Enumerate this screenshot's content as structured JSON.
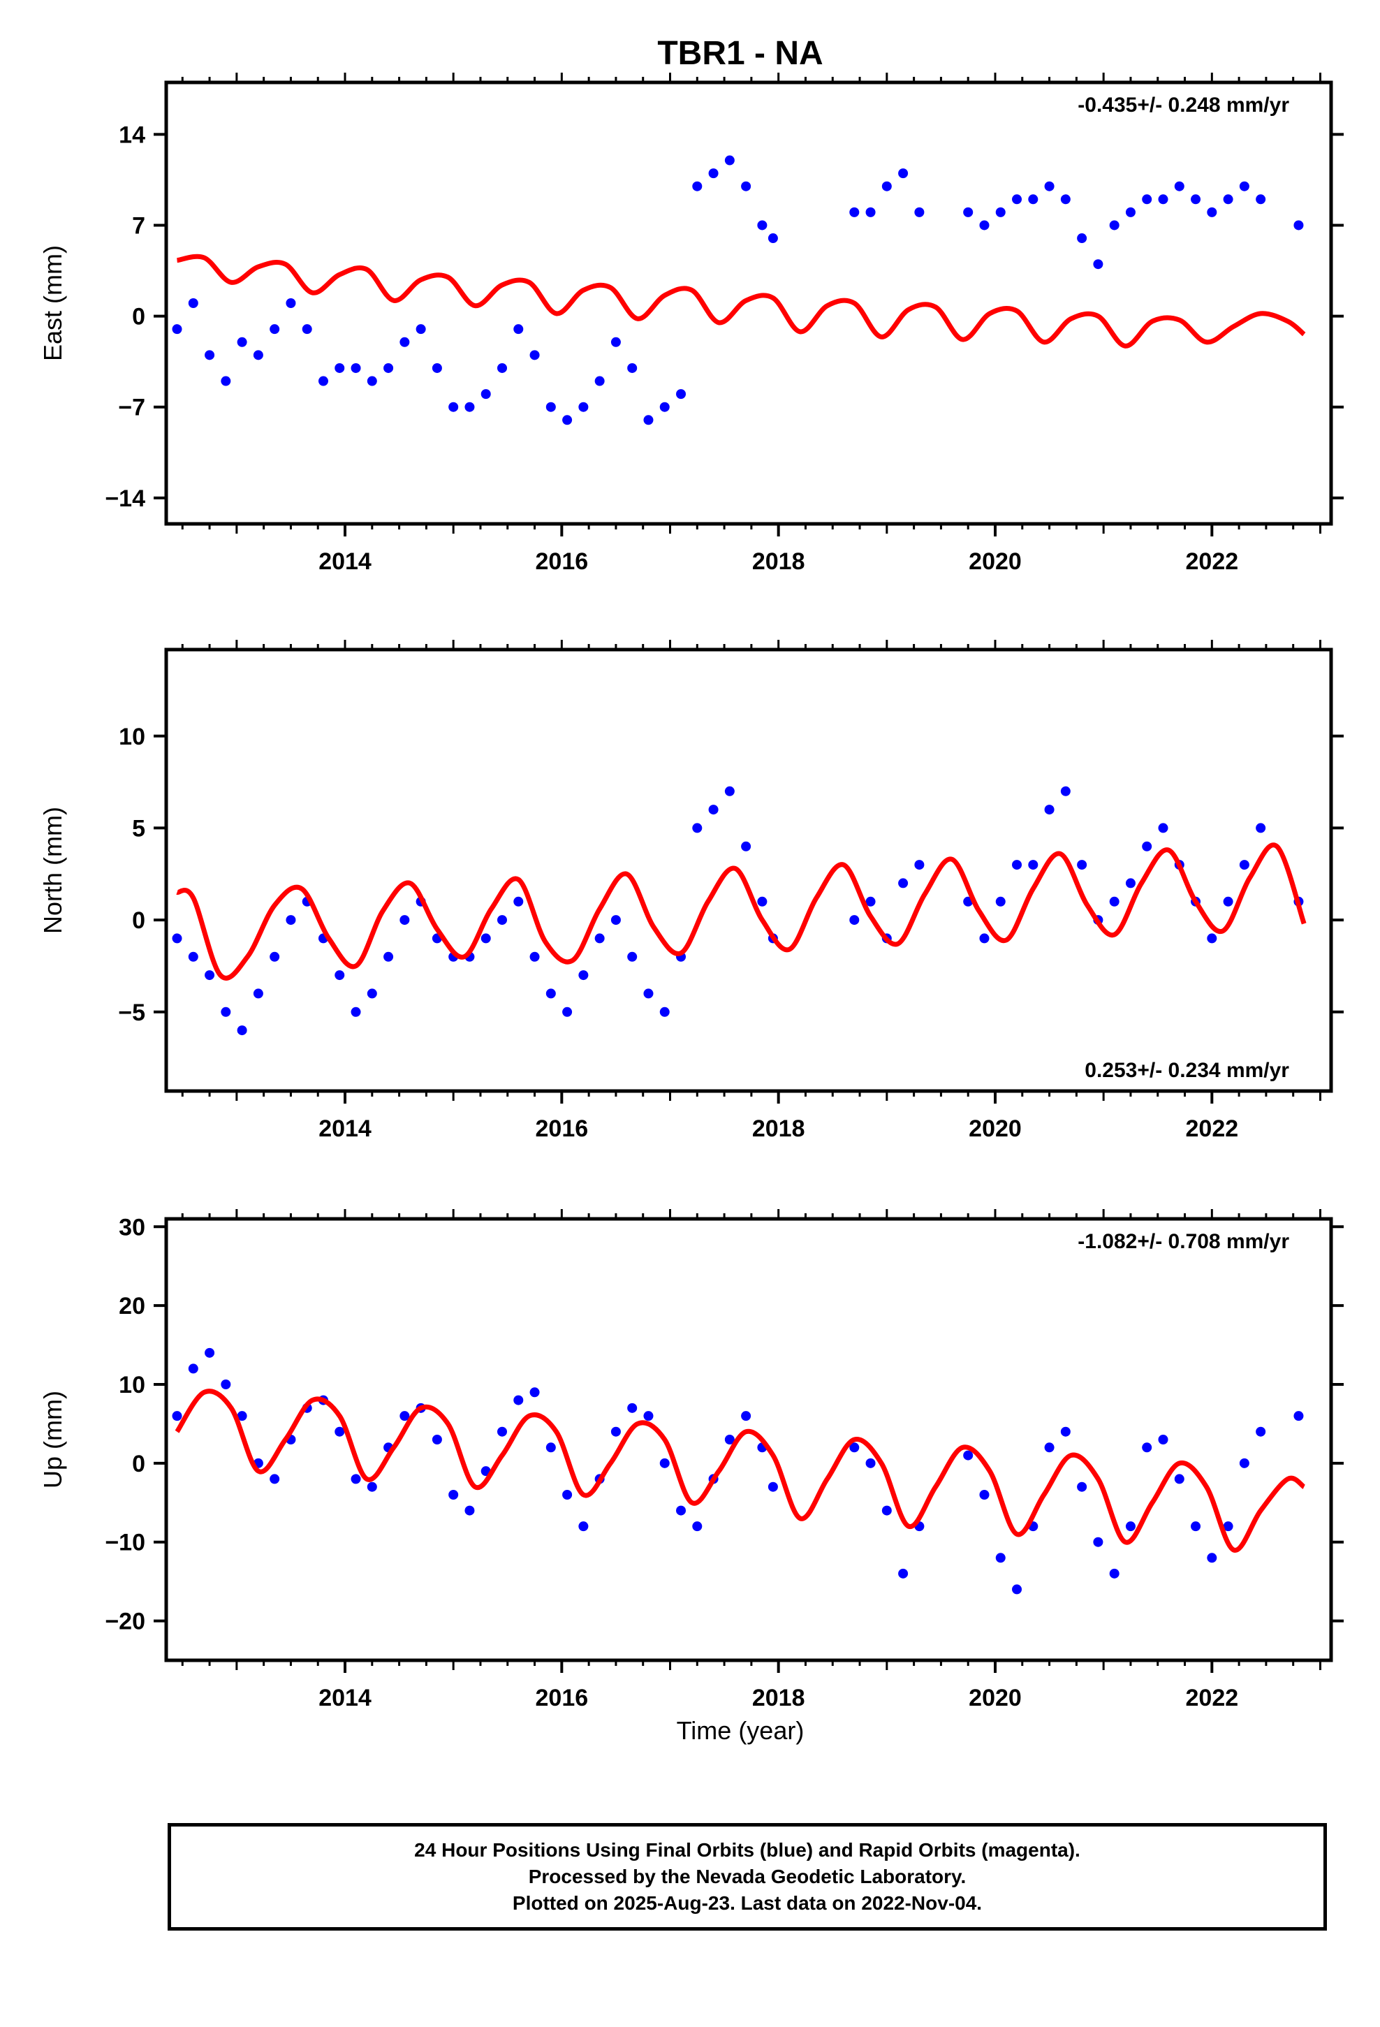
{
  "title": "TBR1 - NA",
  "colors": {
    "points": "#0000ff",
    "fit": "#ff0000",
    "axes": "#000000"
  },
  "xlabel": "Time (year)",
  "caption": [
    "24 Hour Positions Using Final Orbits (blue) and Rapid Orbits (magenta).",
    "Processed by the Nevada Geodetic Laboratory.",
    "Plotted on 2025-Aug-23. Last data on 2022-Nov-04."
  ],
  "chart_data": [
    {
      "type": "scatter",
      "ylabel": "East (mm)",
      "rate_text": "-0.435+/- 0.248 mm/yr",
      "rate_position": "top-right",
      "xlim": [
        2012.35,
        2023.1
      ],
      "ylim": [
        -16,
        18
      ],
      "xticks": [
        2014,
        2016,
        2018,
        2020,
        2022
      ],
      "yticks": [
        14,
        7,
        0,
        -7,
        -14
      ],
      "grid": false,
      "series": [
        {
          "kind": "points",
          "x": [
            2012.45,
            2012.6,
            2012.75,
            2012.9,
            2013.05,
            2013.2,
            2013.35,
            2013.5,
            2013.65,
            2013.8,
            2013.95,
            2014.1,
            2014.25,
            2014.4,
            2014.55,
            2014.7,
            2014.85,
            2015.0,
            2015.15,
            2015.3,
            2015.45,
            2015.6,
            2015.75,
            2015.9,
            2016.05,
            2016.2,
            2016.35,
            2016.5,
            2016.65,
            2016.8,
            2016.95,
            2017.1,
            2017.25,
            2017.4,
            2017.55,
            2017.7,
            2017.85,
            2017.95,
            2018.7,
            2018.85,
            2019.0,
            2019.15,
            2019.3,
            2019.75,
            2019.9,
            2020.05,
            2020.2,
            2020.35,
            2020.5,
            2020.65,
            2020.8,
            2020.95,
            2021.1,
            2021.25,
            2021.4,
            2021.55,
            2021.7,
            2021.85,
            2022.0,
            2022.15,
            2022.3,
            2022.45,
            2022.8
          ],
          "y": [
            -1,
            1,
            -3,
            -5,
            -2,
            -3,
            -1,
            1,
            -1,
            -5,
            -4,
            -4,
            -5,
            -4,
            -2,
            -1,
            -4,
            -7,
            -7,
            -6,
            -4,
            -1,
            -3,
            -7,
            -8,
            -7,
            -5,
            -2,
            -4,
            -8,
            -7,
            -6,
            10,
            11,
            12,
            10,
            7,
            6,
            8,
            8,
            10,
            11,
            8,
            8,
            7,
            8,
            9,
            9,
            10,
            9,
            6,
            4,
            7,
            8,
            9,
            9,
            10,
            9,
            8,
            9,
            10,
            9,
            7
          ]
        },
        {
          "kind": "line",
          "x": [
            2012.45,
            2012.7,
            2012.95,
            2013.2,
            2013.45,
            2013.7,
            2013.95,
            2014.2,
            2014.45,
            2014.7,
            2014.95,
            2015.2,
            2015.45,
            2015.7,
            2015.95,
            2016.2,
            2016.45,
            2016.7,
            2016.95,
            2017.2,
            2017.45,
            2017.7,
            2017.95,
            2018.2,
            2018.45,
            2018.7,
            2018.95,
            2019.2,
            2019.45,
            2019.7,
            2019.95,
            2020.2,
            2020.45,
            2020.7,
            2020.95,
            2021.2,
            2021.45,
            2021.7,
            2021.95,
            2022.2,
            2022.45,
            2022.7,
            2022.85
          ],
          "y": [
            4.3,
            4.5,
            2.6,
            3.8,
            4.0,
            1.8,
            3.2,
            3.6,
            1.2,
            2.8,
            3.0,
            0.8,
            2.4,
            2.6,
            0.2,
            2.0,
            2.2,
            -0.2,
            1.6,
            2.0,
            -0.5,
            1.2,
            1.4,
            -1.2,
            0.8,
            1.0,
            -1.6,
            0.5,
            0.7,
            -1.8,
            0.2,
            0.4,
            -2.0,
            -0.2,
            0.0,
            -2.3,
            -0.4,
            -0.3,
            -2.0,
            -0.8,
            0.2,
            -0.4,
            -1.4
          ]
        }
      ]
    },
    {
      "type": "scatter",
      "ylabel": "North (mm)",
      "rate_text": "0.253+/- 0.234 mm/yr",
      "rate_position": "bottom-right",
      "xlim": [
        2012.35,
        2023.1
      ],
      "ylim": [
        -9.3,
        14.7
      ],
      "xticks": [
        2014,
        2016,
        2018,
        2020,
        2022
      ],
      "yticks": [
        10,
        5,
        0,
        -5
      ],
      "grid": false,
      "series": [
        {
          "kind": "points",
          "x": [
            2012.45,
            2012.6,
            2012.75,
            2012.9,
            2013.05,
            2013.2,
            2013.35,
            2013.5,
            2013.65,
            2013.8,
            2013.95,
            2014.1,
            2014.25,
            2014.4,
            2014.55,
            2014.7,
            2014.85,
            2015.0,
            2015.15,
            2015.3,
            2015.45,
            2015.6,
            2015.75,
            2015.9,
            2016.05,
            2016.2,
            2016.35,
            2016.5,
            2016.65,
            2016.8,
            2016.95,
            2017.1,
            2017.25,
            2017.4,
            2017.55,
            2017.7,
            2017.85,
            2017.95,
            2018.7,
            2018.85,
            2019.0,
            2019.15,
            2019.3,
            2019.75,
            2019.9,
            2020.05,
            2020.2,
            2020.35,
            2020.5,
            2020.65,
            2020.8,
            2020.95,
            2021.1,
            2021.25,
            2021.4,
            2021.55,
            2021.7,
            2021.85,
            2022.0,
            2022.15,
            2022.3,
            2022.45,
            2022.8
          ],
          "y": [
            -1,
            -2,
            -3,
            -5,
            -6,
            -4,
            -2,
            0,
            1,
            -1,
            -3,
            -5,
            -4,
            -2,
            0,
            1,
            -1,
            -2,
            -2,
            -1,
            0,
            1,
            -2,
            -4,
            -5,
            -3,
            -1,
            0,
            -2,
            -4,
            -5,
            -2,
            5,
            6,
            7,
            4,
            1,
            -1,
            0,
            1,
            -1,
            2,
            3,
            1,
            -1,
            1,
            3,
            3,
            6,
            7,
            3,
            0,
            1,
            2,
            4,
            5,
            3,
            1,
            -1,
            1,
            3,
            5,
            1
          ]
        },
        {
          "kind": "line",
          "x": [
            2012.45,
            2012.6,
            2012.85,
            2013.1,
            2013.35,
            2013.6,
            2013.85,
            2014.1,
            2014.35,
            2014.6,
            2014.85,
            2015.1,
            2015.35,
            2015.6,
            2015.85,
            2016.1,
            2016.35,
            2016.6,
            2016.85,
            2017.1,
            2017.35,
            2017.6,
            2017.85,
            2018.1,
            2018.35,
            2018.6,
            2018.85,
            2019.1,
            2019.35,
            2019.6,
            2019.85,
            2020.1,
            2020.35,
            2020.6,
            2020.85,
            2021.1,
            2021.35,
            2021.6,
            2021.85,
            2022.1,
            2022.35,
            2022.6,
            2022.85
          ],
          "y": [
            1.5,
            1.2,
            -3.0,
            -2.0,
            0.8,
            1.7,
            -1.0,
            -2.5,
            0.5,
            2.0,
            -0.5,
            -2.0,
            0.6,
            2.2,
            -1.2,
            -2.2,
            0.6,
            2.5,
            -0.4,
            -1.8,
            1.0,
            2.8,
            0.0,
            -1.6,
            1.2,
            3.0,
            0.2,
            -1.3,
            1.4,
            3.3,
            0.5,
            -1.1,
            1.7,
            3.6,
            0.8,
            -0.8,
            2.0,
            3.8,
            1.0,
            -0.6,
            2.3,
            4.0,
            -0.2
          ]
        }
      ]
    },
    {
      "type": "scatter",
      "ylabel": "Up (mm)",
      "rate_text": "-1.082+/- 0.708 mm/yr",
      "rate_position": "top-right",
      "xlim": [
        2012.35,
        2023.1
      ],
      "ylim": [
        -25,
        31
      ],
      "xticks": [
        2014,
        2016,
        2018,
        2020,
        2022
      ],
      "yticks": [
        30,
        20,
        10,
        0,
        -10,
        -20
      ],
      "grid": false,
      "series": [
        {
          "kind": "points",
          "x": [
            2012.45,
            2012.6,
            2012.75,
            2012.9,
            2013.05,
            2013.2,
            2013.35,
            2013.5,
            2013.65,
            2013.8,
            2013.95,
            2014.1,
            2014.25,
            2014.4,
            2014.55,
            2014.7,
            2014.85,
            2015.0,
            2015.15,
            2015.3,
            2015.45,
            2015.6,
            2015.75,
            2015.9,
            2016.05,
            2016.2,
            2016.35,
            2016.5,
            2016.65,
            2016.8,
            2016.95,
            2017.1,
            2017.25,
            2017.4,
            2017.55,
            2017.7,
            2017.85,
            2017.95,
            2018.7,
            2018.85,
            2019.0,
            2019.15,
            2019.3,
            2019.75,
            2019.9,
            2020.05,
            2020.2,
            2020.35,
            2020.5,
            2020.65,
            2020.8,
            2020.95,
            2021.1,
            2021.25,
            2021.4,
            2021.55,
            2021.7,
            2021.85,
            2022.0,
            2022.15,
            2022.3,
            2022.45,
            2022.8
          ],
          "y": [
            6,
            12,
            14,
            10,
            6,
            0,
            -2,
            3,
            7,
            8,
            4,
            -2,
            -3,
            2,
            6,
            7,
            3,
            -4,
            -6,
            -1,
            4,
            8,
            9,
            2,
            -4,
            -8,
            -2,
            4,
            7,
            6,
            0,
            -6,
            -8,
            -2,
            3,
            6,
            2,
            -3,
            2,
            0,
            -6,
            -14,
            -8,
            1,
            -4,
            -12,
            -16,
            -8,
            2,
            4,
            -3,
            -10,
            -14,
            -8,
            2,
            3,
            -2,
            -8,
            -12,
            -8,
            0,
            4,
            6
          ]
        },
        {
          "kind": "line",
          "x": [
            2012.45,
            2012.7,
            2012.95,
            2013.2,
            2013.45,
            2013.7,
            2013.95,
            2014.2,
            2014.45,
            2014.7,
            2014.95,
            2015.2,
            2015.45,
            2015.7,
            2015.95,
            2016.2,
            2016.45,
            2016.7,
            2016.95,
            2017.2,
            2017.45,
            2017.7,
            2017.95,
            2018.2,
            2018.45,
            2018.7,
            2018.95,
            2019.2,
            2019.45,
            2019.7,
            2019.95,
            2020.2,
            2020.45,
            2020.7,
            2020.95,
            2021.2,
            2021.45,
            2021.7,
            2021.95,
            2022.2,
            2022.45,
            2022.7,
            2022.85
          ],
          "y": [
            4,
            9,
            7,
            -1,
            3,
            8,
            6,
            -2,
            2,
            7,
            5,
            -3,
            1,
            6,
            4,
            -4,
            0,
            5,
            3,
            -5,
            -1,
            4,
            1,
            -7,
            -2,
            3,
            0,
            -8,
            -3,
            2,
            -1,
            -9,
            -4,
            1,
            -2,
            -10,
            -5,
            0,
            -3,
            -11,
            -6,
            -2,
            -3
          ]
        }
      ]
    }
  ]
}
